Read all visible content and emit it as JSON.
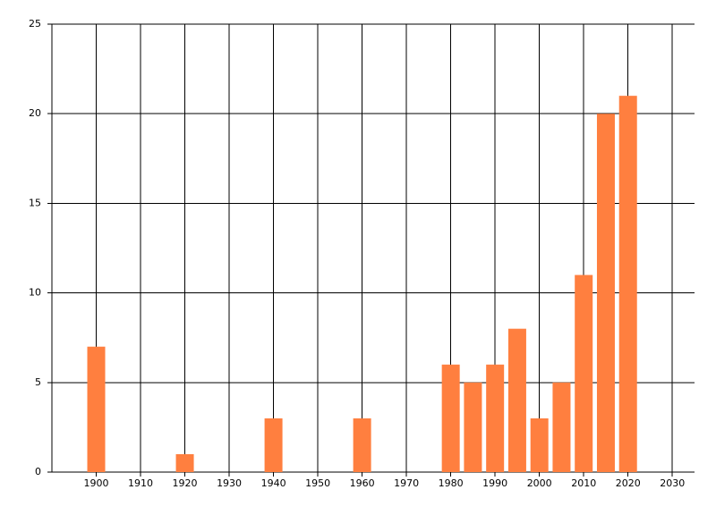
{
  "chart_data": {
    "type": "bar",
    "x": [
      1900,
      1920,
      1940,
      1960,
      1980,
      1985,
      1990,
      1995,
      2000,
      2005,
      2010,
      2015,
      2020
    ],
    "values": [
      7,
      1,
      3,
      3,
      6,
      5,
      6,
      8,
      3,
      5,
      11,
      20,
      21
    ],
    "color": "#ff7f3f",
    "xlim": [
      1890,
      2035
    ],
    "xticks": [
      1900,
      1910,
      1920,
      1930,
      1940,
      1950,
      1960,
      1970,
      1980,
      1990,
      2000,
      2010,
      2020,
      2030
    ],
    "ylim": [
      0,
      25
    ],
    "yticks": [
      0,
      5,
      10,
      15,
      20,
      25
    ],
    "grid": true
  }
}
